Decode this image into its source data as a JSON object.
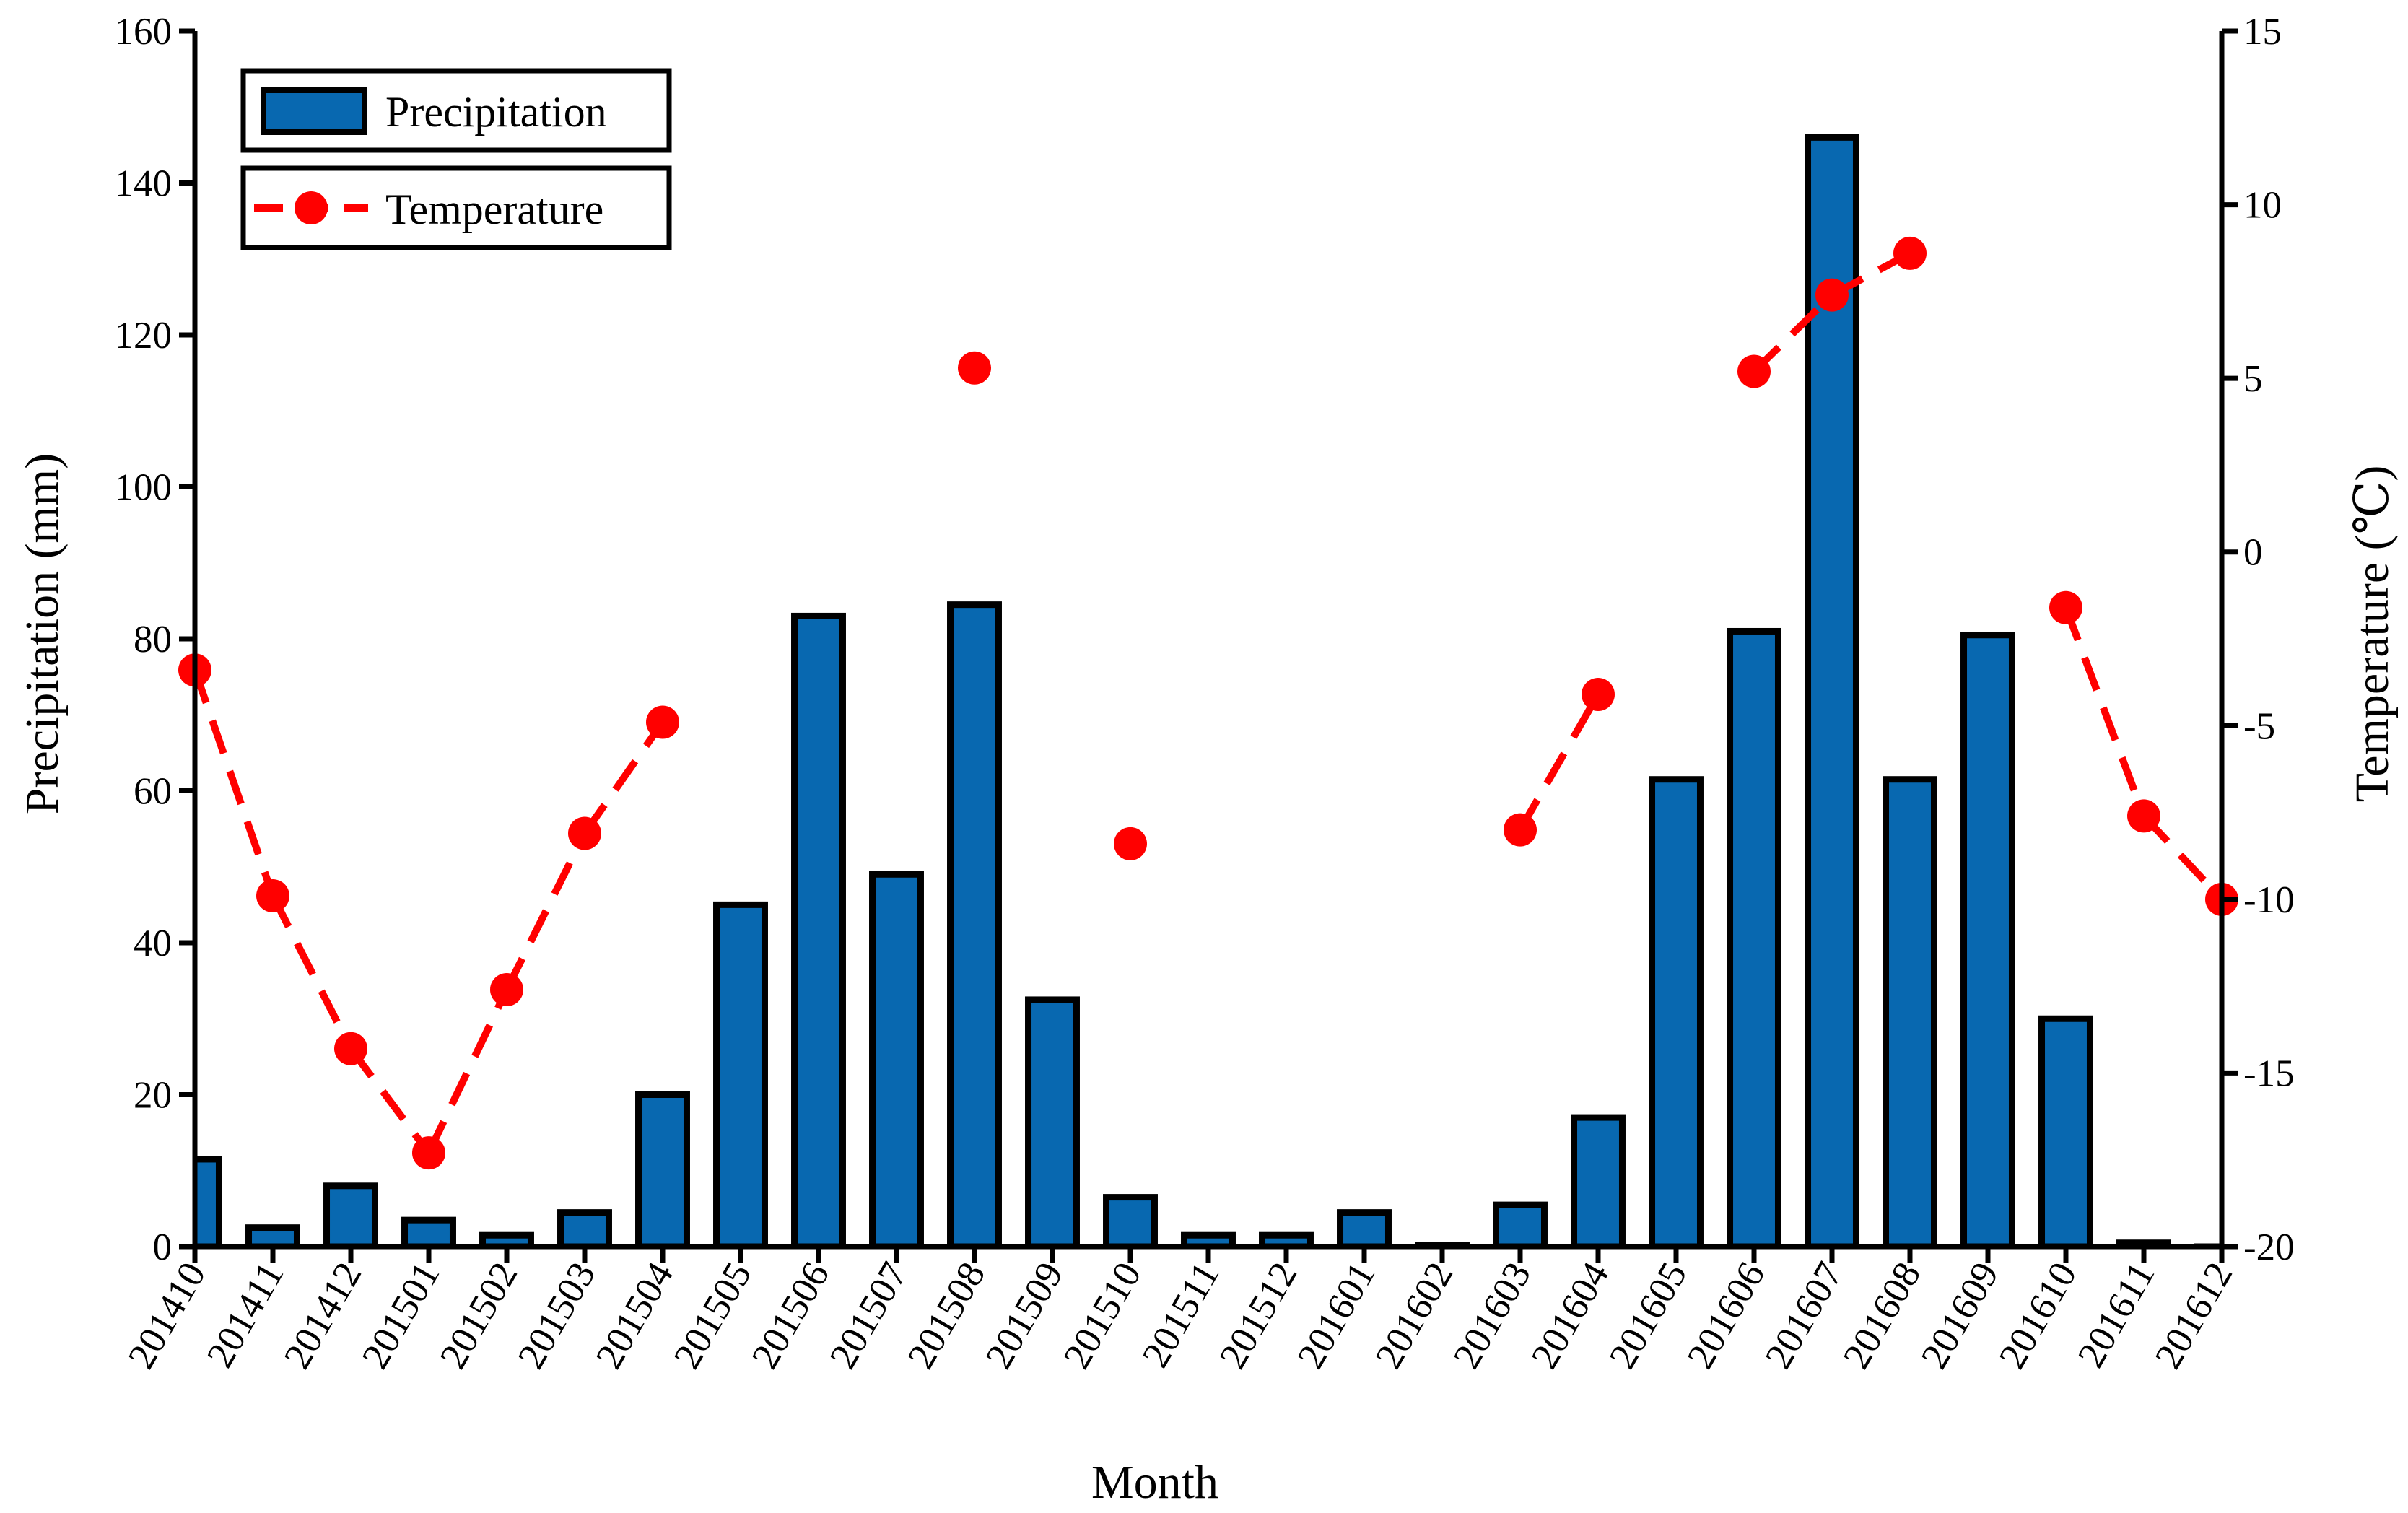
{
  "chart_data": {
    "type": "bar+line",
    "title": "",
    "xlabel": "Month",
    "ylabel_left": "Precipitation (mm)",
    "ylabel_right": "Temperature (℃)",
    "ylim_left": [
      0,
      160
    ],
    "ylim_right": [
      -20,
      15
    ],
    "yticks_left": [
      "0",
      "20",
      "40",
      "60",
      "80",
      "100",
      "120",
      "140",
      "160"
    ],
    "yticks_right": [
      "-20",
      "-15",
      "-10",
      "-5",
      "0",
      "5",
      "10",
      "15"
    ],
    "categories": [
      "201410",
      "201411",
      "201412",
      "201501",
      "201502",
      "201503",
      "201504",
      "201505",
      "201506",
      "201507",
      "201508",
      "201509",
      "201510",
      "201511",
      "201512",
      "201601",
      "201602",
      "201603",
      "201604",
      "201605",
      "201606",
      "201607",
      "201608",
      "201609",
      "201610",
      "201611",
      "201612"
    ],
    "series": [
      {
        "name": "Precipitation",
        "type": "bar",
        "axis": "left",
        "color": "#0868b0",
        "values": [
          11.5,
          2.5,
          8,
          3.5,
          1.5,
          4.5,
          20,
          45,
          83,
          49,
          84.5,
          32.5,
          6.5,
          1.5,
          1.5,
          4.5,
          0.2,
          5.5,
          17,
          61.5,
          81,
          146,
          61.5,
          80.5,
          30,
          0.5,
          0
        ]
      },
      {
        "name": "Temperature",
        "type": "line",
        "axis": "right",
        "color": "#ff0000",
        "values": [
          -3.4,
          -9.9,
          -14.3,
          -17.3,
          -12.6,
          -8.1,
          -4.9,
          null,
          null,
          null,
          5.3,
          null,
          -8.4,
          null,
          null,
          null,
          null,
          -8.0,
          -4.1,
          null,
          5.2,
          7.4,
          8.6,
          null,
          -1.6,
          -7.6,
          -10.0
        ]
      }
    ],
    "legend": {
      "position": "top-left",
      "entries": [
        "Precipitation",
        "Temperature"
      ]
    }
  }
}
